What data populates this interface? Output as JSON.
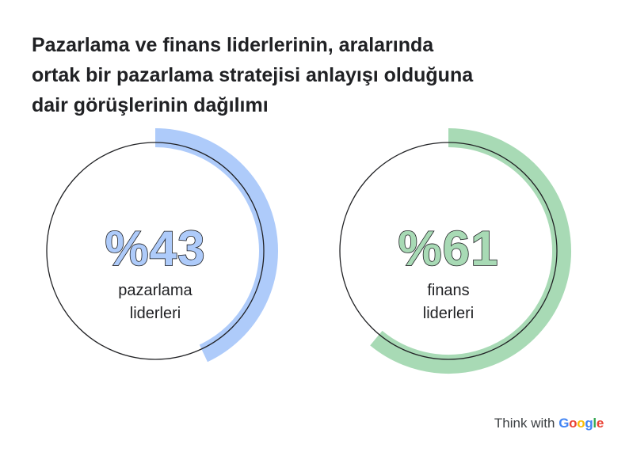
{
  "title_lines": [
    "Pazarlama ve finans liderlerinin, aralarında",
    "ortak bir pazarlama stratejisi anlayışı olduğuna",
    "dair görüşlerinin dağılımı"
  ],
  "chart_data": [
    {
      "type": "pie",
      "title": "",
      "value_label": "%43",
      "values": [
        43
      ],
      "unit": "percent",
      "label_lines": [
        "pazarlama",
        "liderleri"
      ],
      "color": "#aecbfa"
    },
    {
      "type": "pie",
      "title": "",
      "value_label": "%61",
      "values": [
        61
      ],
      "unit": "percent",
      "label_lines": [
        "finans",
        "liderleri"
      ],
      "color": "#a8dab5"
    }
  ],
  "branding": {
    "prefix": "Think with",
    "brand_letters": [
      "G",
      "o",
      "o",
      "g",
      "l",
      "e"
    ],
    "brand_colors": [
      "#4285f4",
      "#ea4335",
      "#fbbc05",
      "#4285f4",
      "#34a853",
      "#ea4335"
    ]
  }
}
